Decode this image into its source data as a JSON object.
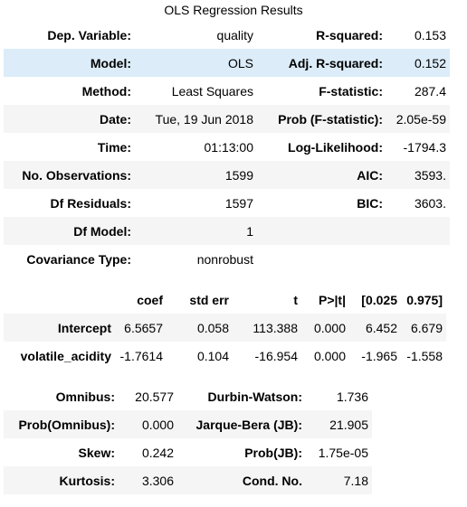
{
  "caption": "OLS Regression Results",
  "summary": {
    "rows": [
      {
        "l1": "Dep. Variable:",
        "v1": "quality",
        "l2": "R-squared:",
        "v2": "0.153"
      },
      {
        "l1": "Model:",
        "v1": "OLS",
        "l2": "Adj. R-squared:",
        "v2": "0.152"
      },
      {
        "l1": "Method:",
        "v1": "Least Squares",
        "l2": "F-statistic:",
        "v2": "287.4"
      },
      {
        "l1": "Date:",
        "v1": "Tue, 19 Jun 2018",
        "l2": "Prob (F-statistic):",
        "v2": "2.05e-59"
      },
      {
        "l1": "Time:",
        "v1": "01:13:00",
        "l2": "Log-Likelihood:",
        "v2": "-1794.3"
      },
      {
        "l1": "No. Observations:",
        "v1": "1599",
        "l2": "AIC:",
        "v2": "3593."
      },
      {
        "l1": "Df Residuals:",
        "v1": "1597",
        "l2": "BIC:",
        "v2": "3603."
      },
      {
        "l1": "Df Model:",
        "v1": "1",
        "l2": "",
        "v2": ""
      },
      {
        "l1": "Covariance Type:",
        "v1": "nonrobust",
        "l2": "",
        "v2": ""
      }
    ]
  },
  "coefficients": {
    "headers": [
      "",
      "coef",
      "std err",
      "t",
      "P>|t|",
      "[0.025",
      "0.975]"
    ],
    "rows": [
      {
        "name": "Intercept",
        "values": [
          "6.5657",
          "0.058",
          "113.388",
          "0.000",
          "6.452",
          "6.679"
        ]
      },
      {
        "name": "volatile_acidity",
        "values": [
          "-1.7614",
          "0.104",
          "-16.954",
          "0.000",
          "-1.965",
          "-1.558"
        ]
      }
    ]
  },
  "diagnostics": {
    "rows": [
      {
        "l1": "Omnibus:",
        "v1": "20.577",
        "l2": "Durbin-Watson:",
        "v2": "1.736"
      },
      {
        "l1": "Prob(Omnibus):",
        "v1": "0.000",
        "l2": "Jarque-Bera (JB):",
        "v2": "21.905"
      },
      {
        "l1": "Skew:",
        "v1": "0.242",
        "l2": "Prob(JB):",
        "v2": "1.75e-05"
      },
      {
        "l1": "Kurtosis:",
        "v1": "3.306",
        "l2": "Cond. No.",
        "v2": "7.18"
      }
    ]
  },
  "colors": {
    "stripe": "#f5f5f5",
    "hover": "#dcecf8"
  }
}
